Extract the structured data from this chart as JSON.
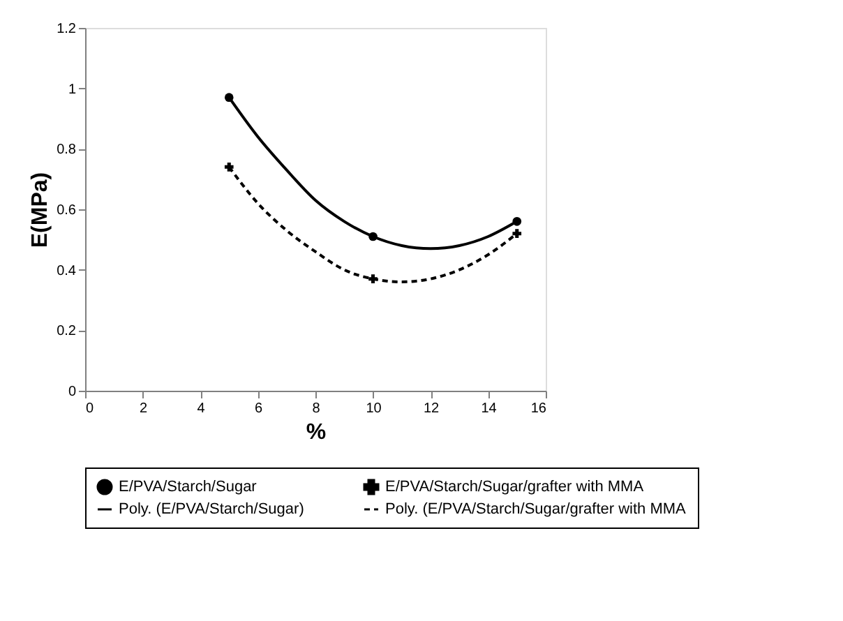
{
  "chart_data": {
    "type": "line",
    "xlabel": "%",
    "ylabel": "E(MPa)",
    "xlim": [
      0,
      16
    ],
    "xticks": [
      0,
      2,
      4,
      6,
      8,
      10,
      12,
      14,
      16
    ],
    "ylim": [
      0,
      1.2
    ],
    "yticks": [
      0,
      0.2,
      0.4,
      0.6,
      0.8,
      1,
      1.2
    ],
    "grid": false,
    "legend": "bottom",
    "series": [
      {
        "name": "E/PVA/Starch/Sugar",
        "type": "scatter",
        "marker": "circle",
        "color": "#000000",
        "x": [
          5,
          10,
          15
        ],
        "values": [
          0.97,
          0.51,
          0.56
        ]
      },
      {
        "name": "E/PVA/Starch/Sugar/grafter with MMA",
        "type": "scatter",
        "marker": "cross",
        "color": "#000000",
        "x": [
          5,
          10,
          15
        ],
        "values": [
          0.74,
          0.37,
          0.52
        ]
      },
      {
        "name": "Poly. (E/PVA/Starch/Sugar)",
        "line_style": "solid",
        "color": "#000000",
        "x": [
          5,
          6,
          7,
          8,
          9,
          10,
          11,
          12,
          13,
          14,
          15
        ],
        "values": [
          0.97,
          0.84,
          0.73,
          0.63,
          0.56,
          0.51,
          0.48,
          0.47,
          0.48,
          0.51,
          0.56
        ]
      },
      {
        "name": "Poly. (E/PVA/Starch/Sugar/grafter with MMA",
        "line_style": "dashed",
        "color": "#000000",
        "x": [
          5,
          6,
          7,
          8,
          9,
          10,
          11,
          12,
          13,
          14,
          15
        ],
        "values": [
          0.74,
          0.62,
          0.53,
          0.46,
          0.4,
          0.37,
          0.36,
          0.37,
          0.4,
          0.45,
          0.52
        ]
      }
    ]
  }
}
